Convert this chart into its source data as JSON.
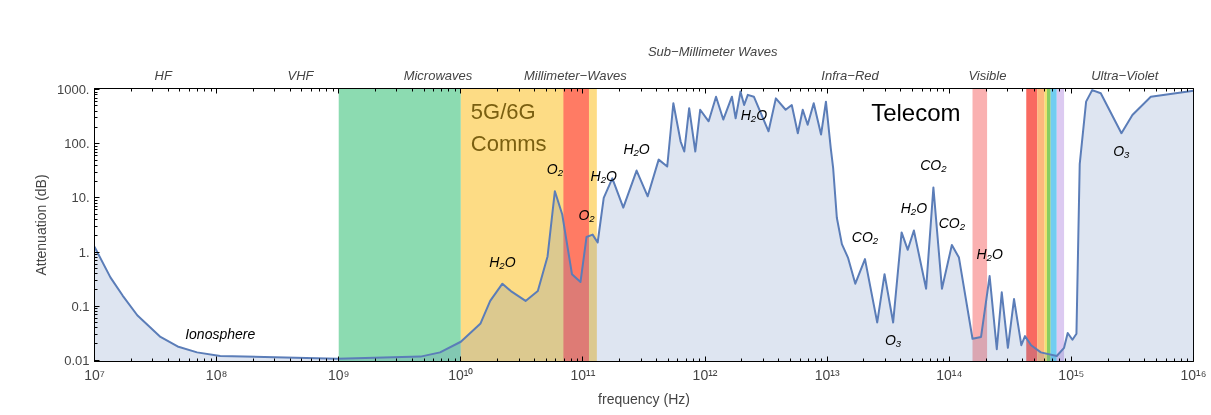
{
  "chart_data": {
    "type": "area",
    "xlabel": "frequency (Hz)",
    "ylabel": "Attenuation (dB)",
    "log": "xy",
    "grid": false,
    "xlim": [
      10000000,
      10000000000000000
    ],
    "ylim": [
      0.0095,
      1050
    ],
    "xticks": [
      {
        "value": 10000000,
        "label": "10⁷"
      },
      {
        "value": 100000000,
        "label": "10⁸"
      },
      {
        "value": 1000000000,
        "label": "10⁹"
      },
      {
        "value": 10000000000,
        "label": "10¹⁰"
      },
      {
        "value": 100000000000,
        "label": "10¹¹"
      },
      {
        "value": 1000000000000,
        "label": "10¹²"
      },
      {
        "value": 10000000000000,
        "label": "10¹³"
      },
      {
        "value": 100000000000000,
        "label": "10¹⁴"
      },
      {
        "value": 1000000000000000,
        "label": "10¹⁵"
      },
      {
        "value": 10000000000000000,
        "label": "10¹⁶"
      }
    ],
    "yticks": [
      {
        "value": 0.01,
        "label": "0.01"
      },
      {
        "value": 0.1,
        "label": "0.1"
      },
      {
        "value": 1,
        "label": "1."
      },
      {
        "value": 10,
        "label": "10."
      },
      {
        "value": 100,
        "label": "100."
      },
      {
        "value": 1000,
        "label": "1000."
      }
    ],
    "series": [
      {
        "color": "#5b7db8",
        "x": [
          10000000,
          13500000,
          17000000,
          22400000,
          34700000,
          47900000,
          69200000,
          107000000,
          977000000,
          4680000000,
          6760000000,
          10000000000,
          14500000000,
          17400000000,
          21900000000,
          25700000000,
          33900000000,
          42700000000,
          51300000000,
          58900000000,
          67600000000,
          81300000000,
          95500000000,
          107000000000,
          120000000000,
          132000000000,
          148000000000,
          174000000000,
          214000000000,
          275000000000,
          339000000000,
          417000000000,
          490000000000,
          550000000000,
          631000000000,
          676000000000,
          741000000000,
          832000000000,
          912000000000,
          1070000000000,
          1230000000000,
          1410000000000,
          1660000000000,
          1780000000000,
          1950000000000,
          2090000000000,
          2240000000000,
          2510000000000,
          3310000000000,
          3800000000000,
          4570000000000,
          5130000000000,
          5750000000000,
          6310000000000,
          6920000000000,
          7760000000000,
          8910000000000,
          9770000000000,
          10700000000000,
          11200000000000,
          12000000000000,
          13200000000000,
          14800000000000,
          17000000000000,
          20400000000000,
          25700000000000,
          29500000000000,
          34700000000000,
          40700000000000,
          45700000000000,
          51300000000000,
          64600000000000,
          74100000000000,
          87100000000000,
          105000000000000,
          120000000000000,
          155000000000000,
          182000000000000,
          214000000000000,
          245000000000000,
          269000000000000,
          302000000000000,
          339000000000000,
          389000000000000,
          417000000000000,
          468000000000000,
          562000000000000,
          759000000000000,
          871000000000000,
          933000000000000,
          1020000000000000,
          1100000000000000,
          1170000000000000,
          1320000000000000,
          1480000000000000,
          1740000000000000,
          2570000000000000,
          3160000000000000,
          4470000000000000,
          10000000000000000
        ],
        "values": [
          1.25,
          0.34,
          0.157,
          0.068,
          0.027,
          0.018,
          0.014,
          0.012,
          0.0107,
          0.0117,
          0.014,
          0.022,
          0.048,
          0.125,
          0.26,
          0.19,
          0.125,
          0.19,
          0.83,
          13.3,
          5.0,
          0.39,
          0.28,
          1.9,
          2.1,
          1.5,
          10,
          23,
          6.6,
          32,
          10.7,
          51,
          38,
          560,
          110,
          72,
          455,
          72,
          425,
          260,
          740,
          280,
          740,
          295,
          920,
          520,
          800,
          740,
          170,
          690,
          425,
          520,
          157,
          425,
          225,
          560,
          148,
          600,
          83,
          35,
          4.3,
          1.4,
          0.79,
          0.26,
          0.74,
          0.05,
          0.39,
          0.05,
          2.3,
          1.1,
          2.5,
          0.21,
          15.6,
          0.21,
          1.35,
          0.79,
          0.025,
          0.027,
          0.36,
          0.016,
          0.18,
          0.017,
          0.135,
          0.019,
          0.028,
          0.019,
          0.014,
          0.012,
          0.017,
          0.032,
          0.024,
          0.031,
          42,
          600,
          980,
          860,
          157,
          340,
          740,
          950
        ]
      }
    ],
    "bands": [
      {
        "axis": "x",
        "from": 1000000000,
        "to": 10000000000,
        "color": "#7fd7a8"
      },
      {
        "axis": "x",
        "from": 10000000000,
        "to": 130000000000,
        "color": "#fdd878",
        "label": "5G/6G\nComms"
      },
      {
        "axis": "x",
        "from": 69200000000,
        "to": 112000000000,
        "color": "#ff7060"
      },
      {
        "axis": "x",
        "from": 155000000000000,
        "to": 204000000000000,
        "color": "#f9a8a8",
        "label": "Telecom"
      },
      {
        "axis": "x",
        "from": 427000000000000,
        "to": 525000000000000,
        "color": "#f85a50"
      },
      {
        "axis": "x",
        "from": 525000000000000,
        "to": 603000000000000,
        "color": "#fdb070"
      },
      {
        "axis": "x",
        "from": 603000000000000,
        "to": 631000000000000,
        "color": "#f0e060"
      },
      {
        "axis": "x",
        "from": 631000000000000,
        "to": 676000000000000,
        "color": "#7cc850"
      },
      {
        "axis": "x",
        "from": 676000000000000,
        "to": 759000000000000,
        "color": "#60c8f0"
      },
      {
        "axis": "x",
        "from": 759000000000000,
        "to": 871000000000000,
        "color": "#d8c4f0"
      }
    ],
    "annotations": [
      "HF",
      "VHF",
      "Microwaves",
      "Millimeter−Waves",
      "Sub−Millimeter Waves",
      "Infra−Red",
      "Visible",
      "Ultra−Violet",
      {
        "text": "Ionosphere",
        "x": 107000000,
        "y": 0.012
      },
      {
        "text": "H₂O",
        "x": 21900000000,
        "y": 0.26
      },
      {
        "text": "O₂",
        "x": 58900000000,
        "y": 13.3
      },
      {
        "text": "O₂",
        "x": 107000000000,
        "y": 1.9
      },
      {
        "text": "H₂O",
        "x": 148000000000,
        "y": 10
      },
      {
        "text": "H₂O",
        "x": 275000000000,
        "y": 32
      },
      {
        "text": "H₂O",
        "x": 2510000000000,
        "y": 740
      },
      {
        "text": "CO₂",
        "x": 20400000000000,
        "y": 0.74
      },
      {
        "text": "O₃",
        "x": 34700000000000,
        "y": 0.05
      },
      {
        "text": "H₂O",
        "x": 51300000000000,
        "y": 2.5
      },
      {
        "text": "CO₂",
        "x": 74100000000000,
        "y": 15.6
      },
      {
        "text": "CO₂",
        "x": 105000000000000,
        "y": 1.35
      },
      {
        "text": "H₂O",
        "x": 214000000000000,
        "y": 0.36
      },
      {
        "text": "O₃",
        "x": 2570000000000000,
        "y": 157
      }
    ]
  }
}
